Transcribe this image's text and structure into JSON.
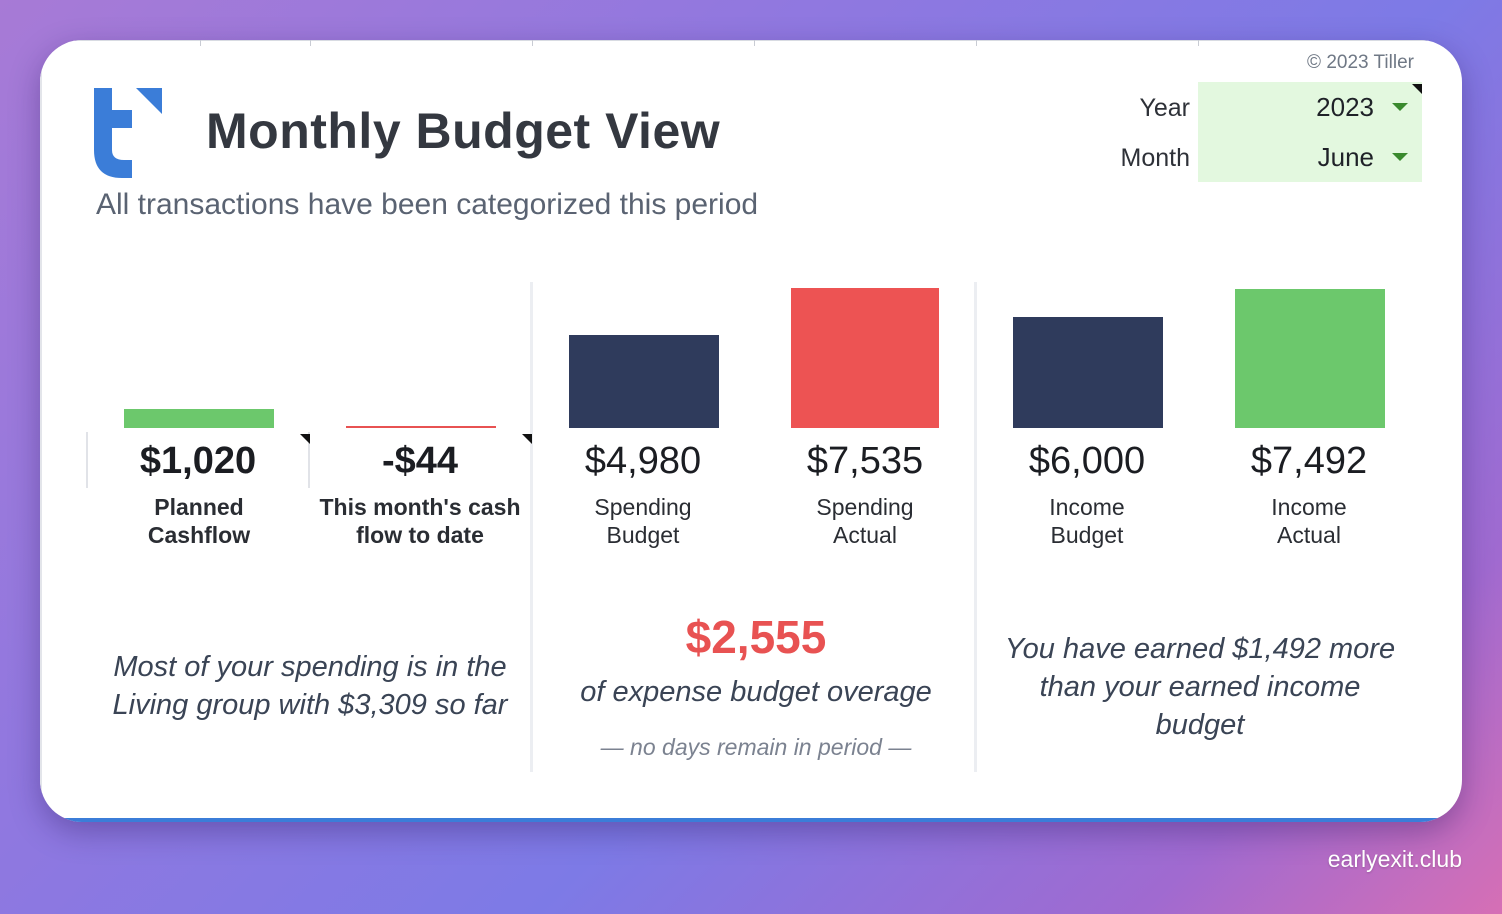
{
  "app": {
    "copyright": "© 2023 Tiller",
    "title": "Monthly Budget View",
    "subtitle": "All transactions have been categorized this period",
    "logo_icon": "tiller-logo-icon"
  },
  "filters": {
    "year_label": "Year",
    "year_value": "2023",
    "month_label": "Month",
    "month_value": "June"
  },
  "chart_data": {
    "type": "bar",
    "title": "Monthly Budget View",
    "categories": [
      "Planned Cashflow",
      "This month's cash flow to date",
      "Spending Budget",
      "Spending Actual",
      "Income Budget",
      "Income Actual"
    ],
    "values": [
      1020,
      -44,
      4980,
      7535,
      6000,
      7492
    ],
    "colors": [
      "#6cc86c",
      "#e85252",
      "#2f3b5c",
      "#ed5353",
      "#2f3b5c",
      "#6cc86c"
    ]
  },
  "metrics": {
    "planned_cashflow": {
      "amount": "$1,020",
      "label_line1": "Planned",
      "label_line2": "Cashflow"
    },
    "cashflow_to_date": {
      "amount": "-$44",
      "label_line1": "This month's cash",
      "label_line2": "flow to date"
    },
    "spending_budget": {
      "amount": "$4,980",
      "label_line1": "Spending",
      "label_line2": "Budget"
    },
    "spending_actual": {
      "amount": "$7,535",
      "label_line1": "Spending",
      "label_line2": "Actual"
    },
    "income_budget": {
      "amount": "$6,000",
      "label_line1": "Income",
      "label_line2": "Budget"
    },
    "income_actual": {
      "amount": "$7,492",
      "label_line1": "Income",
      "label_line2": "Actual"
    }
  },
  "insights": {
    "spending_group_line1": "Most of your spending is in the",
    "spending_group_line2": "Living group with $3,309 so far",
    "overage_amount": "$2,555",
    "overage_label": "of expense budget overage",
    "days_remaining": "— no days remain in period —",
    "income_line1": "You have earned $1,492 more",
    "income_line2": "than your earned income",
    "income_line3": "budget"
  },
  "watermark": "earlyexit.club"
}
